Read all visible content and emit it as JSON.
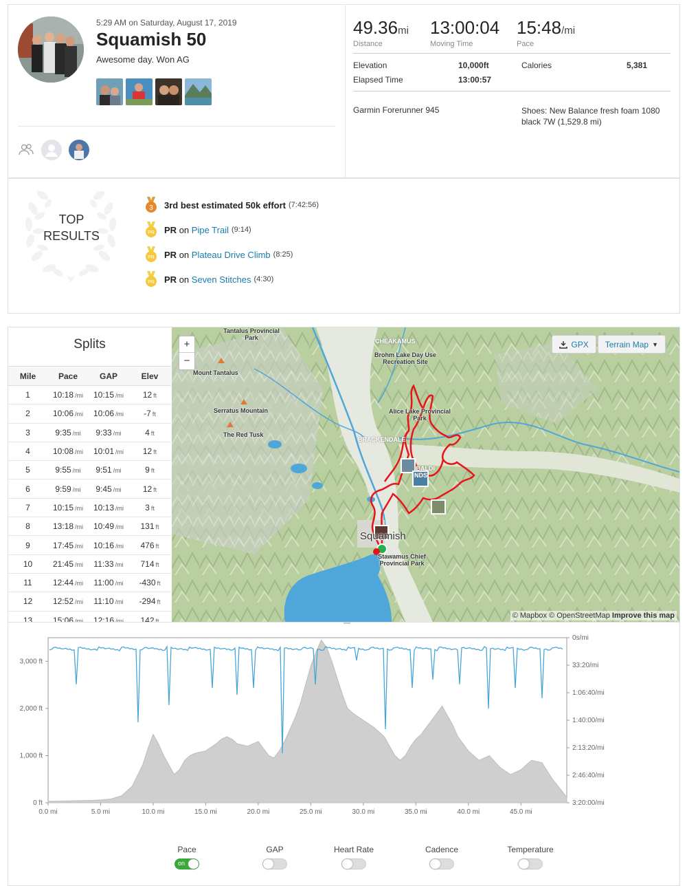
{
  "activity": {
    "datetime": "5:29 AM on Saturday, August 17, 2019",
    "title": "Squamish 50",
    "description": "Awesome day. Won AG"
  },
  "stats": {
    "distance": {
      "value": "49.36",
      "unit": "mi",
      "label": "Distance"
    },
    "moving_time": {
      "value": "13:00:04",
      "label": "Moving Time"
    },
    "pace": {
      "value": "15:48",
      "unit": "/mi",
      "label": "Pace"
    },
    "elevation_label": "Elevation",
    "elevation": "10,000ft",
    "calories_label": "Calories",
    "calories": "5,381",
    "elapsed_label": "Elapsed Time",
    "elapsed": "13:00:57",
    "device": "Garmin Forerunner 945",
    "shoes": "Shoes: New Balance fresh foam 1080 black 7W (1,529.8 mi)"
  },
  "top_results": {
    "label_line1": "TOP",
    "label_line2": "RESULTS",
    "items": [
      {
        "medal": "3",
        "bold": "3rd best estimated 50k effort",
        "on": "",
        "link": "",
        "time": "(7:42:56)"
      },
      {
        "medal": "PR",
        "bold": "PR",
        "on": "on",
        "link": "Pipe Trail",
        "time": "(9:14)"
      },
      {
        "medal": "PR",
        "bold": "PR",
        "on": "on",
        "link": "Plateau Drive Climb",
        "time": "(8:25)"
      },
      {
        "medal": "PR",
        "bold": "PR",
        "on": "on",
        "link": "Seven Stitches",
        "time": "(4:30)"
      }
    ]
  },
  "splits": {
    "title": "Splits",
    "headers": [
      "Mile",
      "Pace",
      "GAP",
      "Elev"
    ],
    "pace_unit": "/mi",
    "elev_unit": "ft",
    "rows": [
      [
        "1",
        "10:18",
        "10:15",
        "12"
      ],
      [
        "2",
        "10:06",
        "10:06",
        "-7"
      ],
      [
        "3",
        "9:35",
        "9:33",
        "4"
      ],
      [
        "4",
        "10:08",
        "10:01",
        "12"
      ],
      [
        "5",
        "9:55",
        "9:51",
        "9"
      ],
      [
        "6",
        "9:59",
        "9:45",
        "12"
      ],
      [
        "7",
        "10:15",
        "10:13",
        "3"
      ],
      [
        "8",
        "13:18",
        "10:49",
        "131"
      ],
      [
        "9",
        "17:45",
        "10:16",
        "476"
      ],
      [
        "10",
        "21:45",
        "11:33",
        "714"
      ],
      [
        "11",
        "12:44",
        "11:00",
        "-430"
      ],
      [
        "12",
        "12:52",
        "11:10",
        "-294"
      ],
      [
        "13",
        "15:06",
        "12:16",
        "142"
      ]
    ]
  },
  "map": {
    "zoom_in": "+",
    "zoom_out": "−",
    "gpx_label": "GPX",
    "terrain_label": "Terrain Map",
    "attribution_1": "© Mapbox © OpenStreetMap",
    "attribution_2": "Improve this map",
    "labels": {
      "tantalus_park": "Tantalus Provincial Park",
      "mount_tantalus": "Mount Tantalus",
      "serratus": "Serratus Mountain",
      "red_tusk": "The Red Tusk",
      "cheakamus": "CHEAKAMUS",
      "brohm": "Brohm Lake Day Use Recreation Site",
      "alice_lake": "Alice Lake Provincial Park",
      "brackendale": "BRACKENDALE",
      "garibaldi": "IBALDI NDS",
      "squamish": "Squamish",
      "stawamus": "Stawamus Chief Provincial Park"
    },
    "colors": {
      "route": "#e8141b",
      "water": "#4fa6d8",
      "start": "#22b14c"
    }
  },
  "chart_data": {
    "type": "area",
    "x_ticks": [
      "0.0 mi",
      "5.0 mi",
      "10.0 mi",
      "15.0 mi",
      "20.0 mi",
      "25.0 mi",
      "30.0 mi",
      "35.0 mi",
      "40.0 mi",
      "45.0 mi"
    ],
    "y_left_ticks": [
      "0 ft",
      "1,000 ft",
      "2,000 ft",
      "3,000 ft"
    ],
    "y_right_ticks": [
      "0s/mi",
      "33:20/mi",
      "1:06:40/mi",
      "1:40:00/mi",
      "2:13:20/mi",
      "2:46:40/mi",
      "3:20:00/mi"
    ],
    "xlim": [
      0,
      49.36
    ],
    "ylim_left": [
      0,
      3500
    ],
    "ylim_right_seconds_per_mile": [
      0,
      12000
    ],
    "series": [
      {
        "name": "Elevation",
        "unit": "ft",
        "color": "#cfcfcf",
        "x": [
          0,
          2,
          4,
          5,
          6,
          7,
          8,
          9,
          9.5,
          10,
          10.5,
          11,
          11.5,
          12,
          12.5,
          13,
          13.5,
          14,
          15,
          16,
          16.5,
          17,
          17.5,
          18,
          19,
          20,
          20.5,
          21,
          21.5,
          22,
          22.5,
          23,
          23.5,
          24,
          24.5,
          25,
          25.5,
          26,
          26.5,
          27,
          27.5,
          28,
          28.5,
          29,
          30,
          31,
          32,
          32.5,
          33,
          33.5,
          34,
          34.5,
          35,
          35.5,
          36,
          36.5,
          37,
          37.5,
          38,
          38.5,
          39,
          40,
          41,
          42,
          43,
          44,
          45,
          46,
          47,
          48,
          49.36
        ],
        "y": [
          30,
          40,
          50,
          60,
          80,
          150,
          350,
          800,
          1150,
          1450,
          1250,
          1000,
          800,
          600,
          700,
          900,
          1000,
          1050,
          1100,
          1250,
          1350,
          1400,
          1350,
          1250,
          1200,
          1300,
          1150,
          1000,
          950,
          1100,
          1300,
          1550,
          1800,
          2100,
          2500,
          2900,
          3200,
          3450,
          3300,
          3000,
          2650,
          2300,
          2000,
          1900,
          1750,
          1600,
          1400,
          1200,
          1000,
          900,
          1000,
          1200,
          1350,
          1450,
          1600,
          1750,
          1900,
          2050,
          1850,
          1650,
          1400,
          1100,
          900,
          1000,
          750,
          600,
          700,
          900,
          850,
          500,
          120
        ]
      },
      {
        "name": "Pace",
        "color": "#4aa5d6"
      }
    ]
  },
  "toggles": [
    {
      "label": "Pace",
      "state": "on",
      "on_text": "on"
    },
    {
      "label": "GAP",
      "state": "off",
      "on_text": ""
    },
    {
      "label": "Heart Rate",
      "state": "off",
      "on_text": ""
    },
    {
      "label": "Cadence",
      "state": "off",
      "on_text": ""
    },
    {
      "label": "Temperature",
      "state": "off",
      "on_text": ""
    }
  ]
}
